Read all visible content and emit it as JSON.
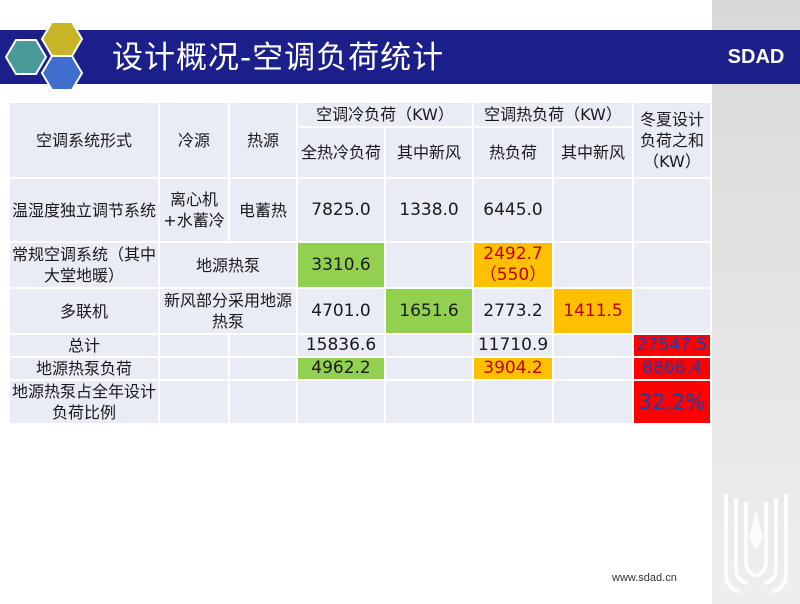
{
  "header": {
    "title": "设计概况-空调负荷统计",
    "brand": "SDAD"
  },
  "footer": {
    "website": "www.sdad.cn"
  },
  "colors": {
    "title_bar": "#1b1f8a",
    "cell_bg": "#e9ebf5",
    "green": "#92d050",
    "orange": "#ffc000",
    "red": "#ff0000",
    "hex_gold": "#c8b427",
    "hex_teal": "#4a9a9a",
    "hex_blue": "#3f6ecf"
  },
  "table": {
    "headers": {
      "system_type": "空调系统形式",
      "cold_source": "冷源",
      "heat_source": "热源",
      "cooling_load_group": "空调冷负荷（KW）",
      "heating_load_group": "空调热负荷（KW）",
      "design_load_sum": "冬夏设计负荷之和（KW）",
      "total_cooling": "全热冷负荷",
      "cooling_fresh_air": "其中新风",
      "heating_load": "热负荷",
      "heating_fresh_air": "其中新风"
    },
    "rows": [
      {
        "system": "温湿度独立调节系统",
        "cold_source": "离心机+水蓄冷",
        "heat_source": "电蓄热",
        "total_cooling": "7825.0",
        "cooling_fresh_air": "1338.0",
        "heating": "6445.0",
        "heating_fresh_air": "",
        "sum": ""
      },
      {
        "system": "常规空调系统（其中大堂地暖）",
        "source_combined": "地源热泵",
        "total_cooling": "3310.6",
        "cooling_fresh_air": "",
        "heating": "2492.7",
        "heating_sub": "（550）",
        "heating_fresh_air": "",
        "sum": ""
      },
      {
        "system": "多联机",
        "source_combined": "新风部分采用地源热泵",
        "total_cooling": "4701.0",
        "cooling_fresh_air": "1651.6",
        "heating": "2773.2",
        "heating_fresh_air": "1411.5",
        "sum": ""
      },
      {
        "system": "总计",
        "cold_source": "",
        "heat_source": "",
        "total_cooling": "15836.6",
        "cooling_fresh_air": "",
        "heating": "11710.9",
        "heating_fresh_air": "",
        "sum": "27547.5"
      },
      {
        "system": "地源热泵负荷",
        "cold_source": "",
        "heat_source": "",
        "total_cooling": "4962.2",
        "cooling_fresh_air": "",
        "heating": "3904.2",
        "heating_fresh_air": "",
        "sum": "8866.4"
      },
      {
        "system": "地源热泵占全年设计负荷比例",
        "cold_source": "",
        "heat_source": "",
        "total_cooling": "",
        "cooling_fresh_air": "",
        "heating": "",
        "heating_fresh_air": "",
        "sum": "32.2%"
      }
    ]
  }
}
